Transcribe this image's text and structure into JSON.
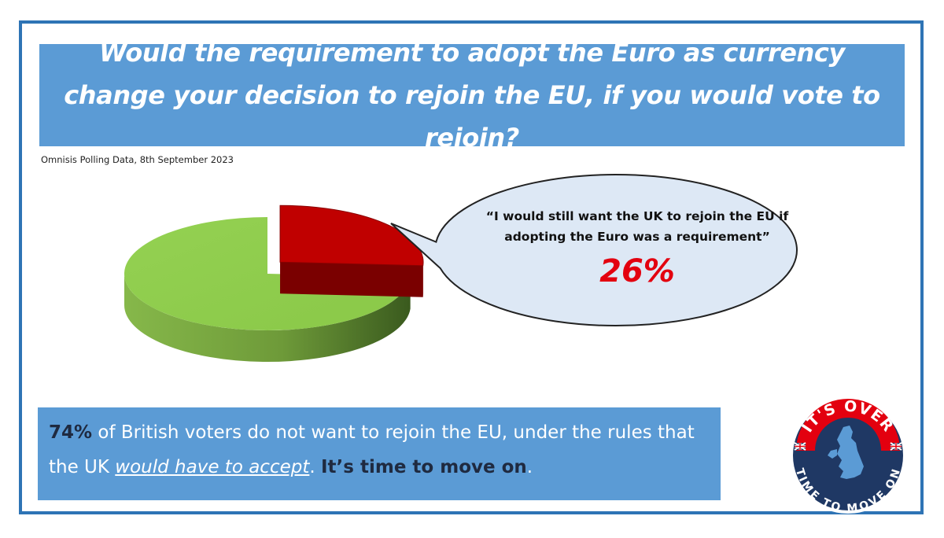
{
  "title": "Would the requirement to adopt the Euro as currency change your decision to rejoin the EU, if you would vote to rejoin?",
  "source": "Omnisis Polling Data, 8th September 2023",
  "callout": {
    "quote": "“I would still want the UK to rejoin the EU if adopting the Euro was a requirement”",
    "percent": "26%"
  },
  "message": {
    "lead": "74%",
    "part1": " of British voters do not want to rejoin the EU, under the rules that the UK ",
    "underlined": "would have to accept",
    "part2": ". ",
    "closing": "It’s time to move on",
    "end": "."
  },
  "logo": {
    "top_text": "IT'S OVER",
    "bottom_text": "TIME TO MOVE ON",
    "icon": "uk-map-icon",
    "flag_icon": "union-jack-icon"
  },
  "colors": {
    "title_bg": "#5b9bd5",
    "frame": "#2e74b5",
    "slice_green": "#92d050",
    "slice_red": "#c00000",
    "percent_red": "#e3000f",
    "bubble_fill": "#dde8f5",
    "logo_navy": "#1f3864"
  },
  "chart_data": {
    "type": "pie",
    "style": "3d-exploded",
    "slices": [
      {
        "value": 26,
        "color": "#c00000",
        "exploded": true
      },
      {
        "value": 74,
        "color": "#92d050",
        "exploded": false
      }
    ]
  }
}
